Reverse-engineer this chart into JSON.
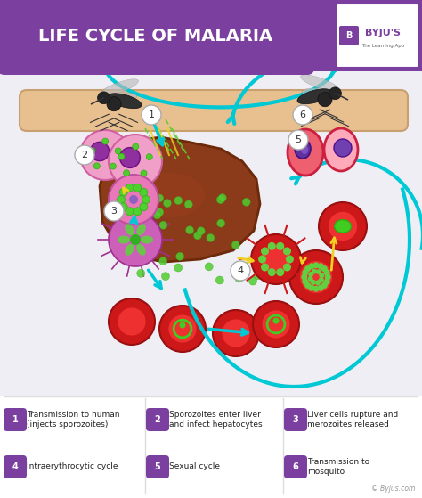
{
  "title": "LIFE CYCLE OF MALARIA",
  "title_bg": "#7b3fa0",
  "title_color": "#ffffff",
  "main_bg": "#f0eef5",
  "legend_color": "#7b3fa0",
  "arrow_cyan": "#00c8d4",
  "arrow_yellow": "#f0d020",
  "stick_color": "#e8c090",
  "watermark": "© Byjus.com",
  "byju_text": "BYJU'S",
  "byju_sub": "The Learning App"
}
